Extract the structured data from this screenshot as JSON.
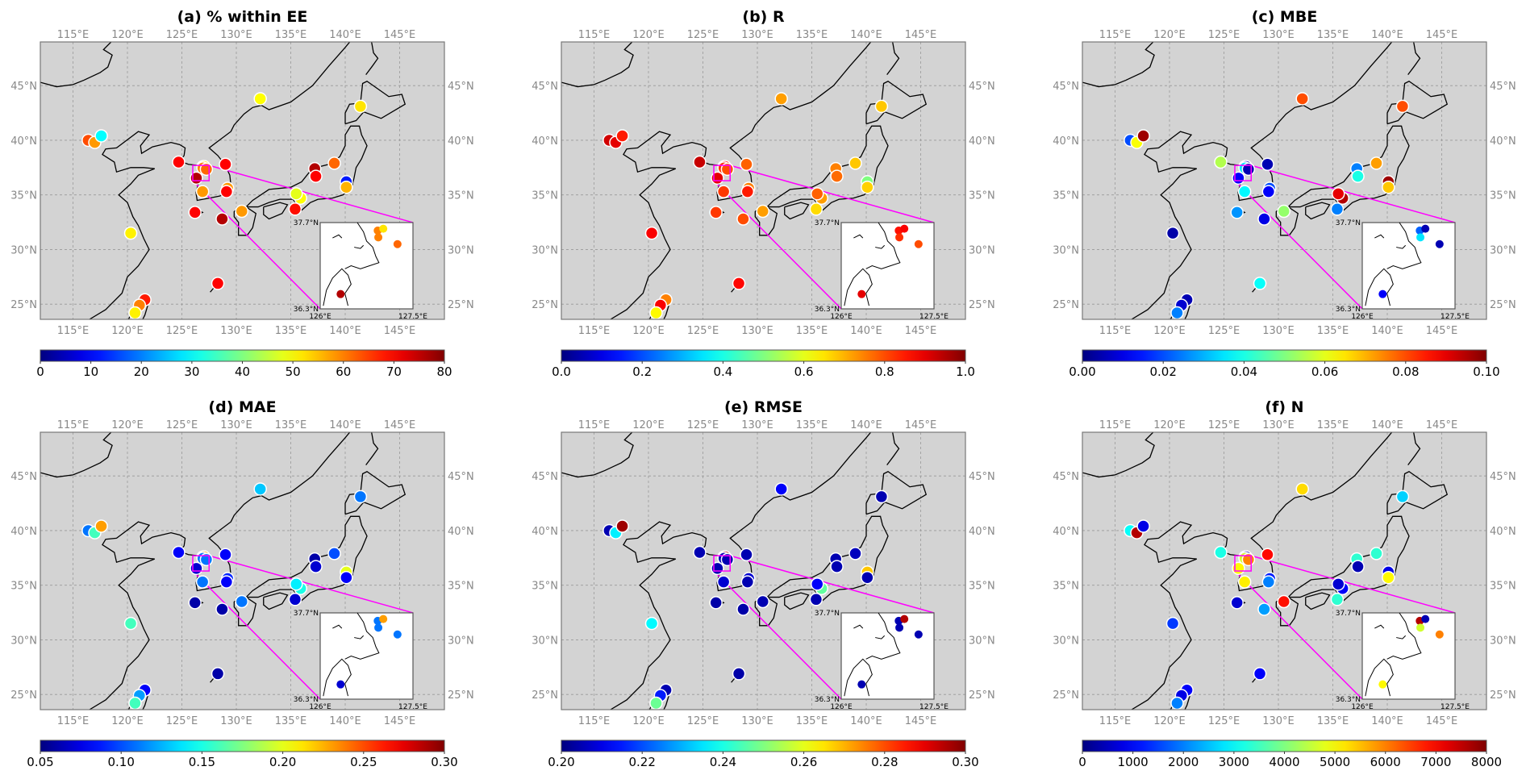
{
  "colors": {
    "map_background": "#d3d3d3",
    "coastline": "#000000",
    "zoom_box": "#ff00ff",
    "inset_background": "#ffffff",
    "tick_label": "#888888"
  },
  "axes": {
    "extent": {
      "lon": [
        112,
        149.11
      ],
      "lat": [
        23.61,
        49
      ]
    },
    "lon_ticks": [
      115,
      120,
      125,
      130,
      135,
      140,
      145
    ],
    "lon_labels": [
      "115°E",
      "120°E",
      "125°E",
      "130°E",
      "135°E",
      "140°E",
      "145°E"
    ],
    "lat_ticks": [
      25,
      30,
      35,
      40,
      45
    ],
    "lat_labels": [
      "25°N",
      "30°N",
      "35°N",
      "40°N",
      "45°N"
    ]
  },
  "inset": {
    "lon": [
      126,
      127.5
    ],
    "lat": [
      36.3,
      37.7
    ],
    "labels": {
      "top_lat": "37.7°N",
      "bottom_lat": "36.3°N",
      "left_lon": "126°E",
      "right_lon": "127.5°E"
    }
  },
  "chart_data": {
    "type": "scatter",
    "colormap": "jet",
    "stations": [
      {
        "lon": 116.4,
        "lat": 40.0
      },
      {
        "lon": 117.0,
        "lat": 39.8
      },
      {
        "lon": 117.6,
        "lat": 40.4
      },
      {
        "lon": 132.2,
        "lat": 43.8
      },
      {
        "lon": 141.4,
        "lat": 43.1
      },
      {
        "lon": 124.7,
        "lat": 38.0
      },
      {
        "lon": 129.0,
        "lat": 37.8
      },
      {
        "lon": 126.9,
        "lat": 35.3
      },
      {
        "lon": 129.2,
        "lat": 35.6
      },
      {
        "lon": 129.1,
        "lat": 35.3
      },
      {
        "lon": 126.2,
        "lat": 33.4
      },
      {
        "lon": 128.7,
        "lat": 32.8
      },
      {
        "lon": 130.5,
        "lat": 33.5
      },
      {
        "lon": 120.3,
        "lat": 31.5
      },
      {
        "lon": 121.6,
        "lat": 25.4
      },
      {
        "lon": 121.1,
        "lat": 24.9
      },
      {
        "lon": 120.7,
        "lat": 24.2
      },
      {
        "lon": 128.3,
        "lat": 26.9
      },
      {
        "lon": 137.2,
        "lat": 37.4
      },
      {
        "lon": 137.3,
        "lat": 36.7
      },
      {
        "lon": 139.0,
        "lat": 37.9
      },
      {
        "lon": 140.1,
        "lat": 36.2
      },
      {
        "lon": 140.1,
        "lat": 35.7
      },
      {
        "lon": 135.9,
        "lat": 34.7
      },
      {
        "lon": 135.5,
        "lat": 35.1
      },
      {
        "lon": 135.4,
        "lat": 33.7
      },
      {
        "lon": 126.93,
        "lat": 37.57
      },
      {
        "lon": 127.02,
        "lat": 37.6
      },
      {
        "lon": 126.94,
        "lat": 37.46
      },
      {
        "lon": 127.25,
        "lat": 37.35
      },
      {
        "lon": 126.33,
        "lat": 36.54
      }
    ],
    "panels": [
      {
        "title": "(a) % within EE",
        "colorbar": {
          "min": 0,
          "max": 80,
          "ticks": [
            0,
            10,
            20,
            30,
            40,
            50,
            60,
            70,
            80
          ],
          "tick_labels": [
            "0",
            "10",
            "20",
            "30",
            "40",
            "50",
            "60",
            "70",
            "80"
          ]
        },
        "values": [
          64,
          58,
          30,
          50,
          52,
          70,
          70,
          58,
          58,
          70,
          70,
          76,
          58,
          51,
          68,
          60,
          51,
          70,
          76,
          70,
          62,
          12,
          56,
          50,
          48,
          69,
          60,
          52,
          60,
          62,
          76
        ]
      },
      {
        "title": "(b) R",
        "colorbar": {
          "min": 0,
          "max": 1,
          "ticks": [
            0,
            0.2,
            0.4,
            0.6,
            0.8,
            1.0
          ],
          "tick_labels": [
            "0.0",
            "0.2",
            "0.4",
            "0.6",
            "0.8",
            "1.0"
          ]
        },
        "values": [
          0.92,
          0.9,
          0.85,
          0.72,
          0.68,
          0.93,
          0.78,
          0.82,
          0.75,
          0.85,
          0.82,
          0.8,
          0.72,
          0.88,
          0.75,
          0.88,
          0.63,
          0.87,
          0.75,
          0.77,
          0.68,
          0.5,
          0.67,
          0.72,
          0.78,
          0.66,
          0.86,
          0.88,
          0.83,
          0.8,
          0.9
        ]
      },
      {
        "title": "(c) MBE",
        "colorbar": {
          "min": 0,
          "max": 0.1,
          "ticks": [
            0,
            0.02,
            0.04,
            0.06,
            0.08,
            0.1
          ],
          "tick_labels": [
            "0.00",
            "0.02",
            "0.04",
            "0.06",
            "0.08",
            "0.10"
          ]
        },
        "values": [
          0.02,
          0.062,
          0.097,
          0.08,
          0.08,
          0.055,
          0.005,
          0.037,
          0.02,
          0.012,
          0.027,
          0.01,
          0.052,
          0.004,
          0.005,
          0.008,
          0.025,
          0.038,
          0.025,
          0.04,
          0.072,
          0.097,
          0.068,
          0.095,
          0.09,
          0.025,
          0.022,
          0.005,
          0.035,
          0.005,
          0.012
        ]
      },
      {
        "title": "(d) MAE",
        "colorbar": {
          "min": 0.05,
          "max": 0.3,
          "ticks": [
            0.05,
            0.1,
            0.15,
            0.2,
            0.25,
            0.3
          ],
          "tick_labels": [
            "0.05",
            "0.10",
            "0.15",
            "0.20",
            "0.25",
            "0.30"
          ]
        },
        "values": [
          0.11,
          0.16,
          0.23,
          0.13,
          0.11,
          0.08,
          0.08,
          0.11,
          0.09,
          0.08,
          0.06,
          0.06,
          0.11,
          0.16,
          0.08,
          0.12,
          0.16,
          0.06,
          0.06,
          0.07,
          0.1,
          0.2,
          0.08,
          0.15,
          0.14,
          0.07,
          0.11,
          0.23,
          0.11,
          0.11,
          0.07
        ]
      },
      {
        "title": "(e) RMSE",
        "colorbar": {
          "min": 0.2,
          "max": 0.3,
          "ticks": [
            0.2,
            0.22,
            0.24,
            0.26,
            0.28,
            0.3
          ],
          "tick_labels": [
            "0.20",
            "0.22",
            "0.24",
            "0.26",
            "0.28",
            "0.30"
          ]
        },
        "values": [
          0.205,
          0.236,
          0.297,
          0.212,
          0.205,
          0.205,
          0.205,
          0.208,
          0.208,
          0.205,
          0.204,
          0.204,
          0.205,
          0.237,
          0.205,
          0.215,
          0.248,
          0.204,
          0.205,
          0.205,
          0.206,
          0.268,
          0.205,
          0.247,
          0.212,
          0.205,
          0.205,
          0.295,
          0.205,
          0.205,
          0.205
        ]
      },
      {
        "title": "(f) N",
        "colorbar": {
          "min": 0,
          "max": 8000,
          "ticks": [
            0,
            1000,
            2000,
            3000,
            4000,
            5000,
            6000,
            7000,
            8000
          ],
          "tick_labels": [
            "0",
            "1000",
            "2000",
            "3000",
            "4000",
            "5000",
            "6000",
            "7000",
            "8000"
          ]
        },
        "values": [
          3040,
          7600,
          800,
          5280,
          2640,
          3200,
          6960,
          5120,
          1200,
          2000,
          640,
          2240,
          6880,
          1440,
          960,
          800,
          2000,
          960,
          3360,
          400,
          3360,
          800,
          5040,
          960,
          640,
          3360,
          7600,
          400,
          4640,
          6000,
          5040
        ]
      }
    ]
  }
}
